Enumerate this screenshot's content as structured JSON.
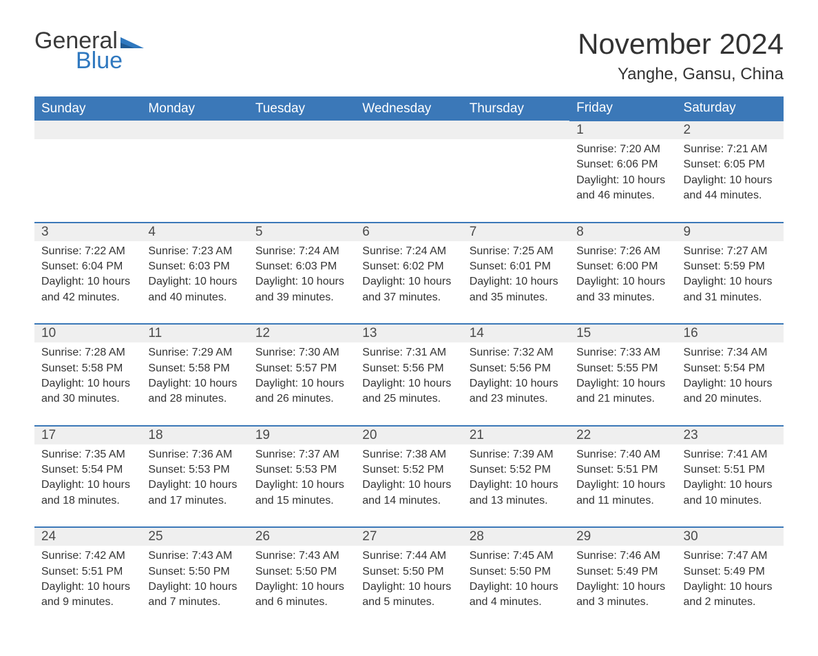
{
  "logo": {
    "text1": "General",
    "text2": "Blue",
    "flag_color": "#2f78bf"
  },
  "title": "November 2024",
  "location": "Yanghe, Gansu, China",
  "columns": [
    "Sunday",
    "Monday",
    "Tuesday",
    "Wednesday",
    "Thursday",
    "Friday",
    "Saturday"
  ],
  "colors": {
    "header_bg": "#3b78b8",
    "header_text": "#ffffff",
    "daynum_bg": "#efefef",
    "daynum_border": "#3b78b8",
    "text": "#333333",
    "logo_general": "#3a3a3a",
    "logo_blue": "#2f78bf"
  },
  "labels": {
    "sunrise": "Sunrise:",
    "sunset": "Sunset:",
    "daylight": "Daylight:"
  },
  "weeks": [
    [
      null,
      null,
      null,
      null,
      null,
      {
        "d": "1",
        "sr": "7:20 AM",
        "ss": "6:06 PM",
        "dl": "10 hours and 46 minutes."
      },
      {
        "d": "2",
        "sr": "7:21 AM",
        "ss": "6:05 PM",
        "dl": "10 hours and 44 minutes."
      }
    ],
    [
      {
        "d": "3",
        "sr": "7:22 AM",
        "ss": "6:04 PM",
        "dl": "10 hours and 42 minutes."
      },
      {
        "d": "4",
        "sr": "7:23 AM",
        "ss": "6:03 PM",
        "dl": "10 hours and 40 minutes."
      },
      {
        "d": "5",
        "sr": "7:24 AM",
        "ss": "6:03 PM",
        "dl": "10 hours and 39 minutes."
      },
      {
        "d": "6",
        "sr": "7:24 AM",
        "ss": "6:02 PM",
        "dl": "10 hours and 37 minutes."
      },
      {
        "d": "7",
        "sr": "7:25 AM",
        "ss": "6:01 PM",
        "dl": "10 hours and 35 minutes."
      },
      {
        "d": "8",
        "sr": "7:26 AM",
        "ss": "6:00 PM",
        "dl": "10 hours and 33 minutes."
      },
      {
        "d": "9",
        "sr": "7:27 AM",
        "ss": "5:59 PM",
        "dl": "10 hours and 31 minutes."
      }
    ],
    [
      {
        "d": "10",
        "sr": "7:28 AM",
        "ss": "5:58 PM",
        "dl": "10 hours and 30 minutes."
      },
      {
        "d": "11",
        "sr": "7:29 AM",
        "ss": "5:58 PM",
        "dl": "10 hours and 28 minutes."
      },
      {
        "d": "12",
        "sr": "7:30 AM",
        "ss": "5:57 PM",
        "dl": "10 hours and 26 minutes."
      },
      {
        "d": "13",
        "sr": "7:31 AM",
        "ss": "5:56 PM",
        "dl": "10 hours and 25 minutes."
      },
      {
        "d": "14",
        "sr": "7:32 AM",
        "ss": "5:56 PM",
        "dl": "10 hours and 23 minutes."
      },
      {
        "d": "15",
        "sr": "7:33 AM",
        "ss": "5:55 PM",
        "dl": "10 hours and 21 minutes."
      },
      {
        "d": "16",
        "sr": "7:34 AM",
        "ss": "5:54 PM",
        "dl": "10 hours and 20 minutes."
      }
    ],
    [
      {
        "d": "17",
        "sr": "7:35 AM",
        "ss": "5:54 PM",
        "dl": "10 hours and 18 minutes."
      },
      {
        "d": "18",
        "sr": "7:36 AM",
        "ss": "5:53 PM",
        "dl": "10 hours and 17 minutes."
      },
      {
        "d": "19",
        "sr": "7:37 AM",
        "ss": "5:53 PM",
        "dl": "10 hours and 15 minutes."
      },
      {
        "d": "20",
        "sr": "7:38 AM",
        "ss": "5:52 PM",
        "dl": "10 hours and 14 minutes."
      },
      {
        "d": "21",
        "sr": "7:39 AM",
        "ss": "5:52 PM",
        "dl": "10 hours and 13 minutes."
      },
      {
        "d": "22",
        "sr": "7:40 AM",
        "ss": "5:51 PM",
        "dl": "10 hours and 11 minutes."
      },
      {
        "d": "23",
        "sr": "7:41 AM",
        "ss": "5:51 PM",
        "dl": "10 hours and 10 minutes."
      }
    ],
    [
      {
        "d": "24",
        "sr": "7:42 AM",
        "ss": "5:51 PM",
        "dl": "10 hours and 9 minutes."
      },
      {
        "d": "25",
        "sr": "7:43 AM",
        "ss": "5:50 PM",
        "dl": "10 hours and 7 minutes."
      },
      {
        "d": "26",
        "sr": "7:43 AM",
        "ss": "5:50 PM",
        "dl": "10 hours and 6 minutes."
      },
      {
        "d": "27",
        "sr": "7:44 AM",
        "ss": "5:50 PM",
        "dl": "10 hours and 5 minutes."
      },
      {
        "d": "28",
        "sr": "7:45 AM",
        "ss": "5:50 PM",
        "dl": "10 hours and 4 minutes."
      },
      {
        "d": "29",
        "sr": "7:46 AM",
        "ss": "5:49 PM",
        "dl": "10 hours and 3 minutes."
      },
      {
        "d": "30",
        "sr": "7:47 AM",
        "ss": "5:49 PM",
        "dl": "10 hours and 2 minutes."
      }
    ]
  ]
}
